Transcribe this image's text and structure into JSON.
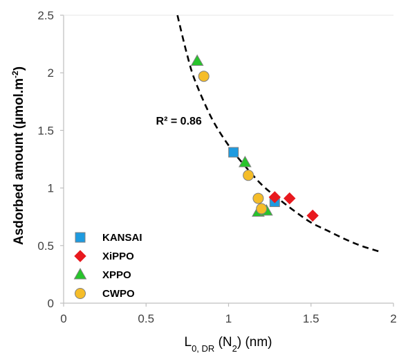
{
  "chart_data": {
    "type": "scatter",
    "xlabel": {
      "main": "L",
      "sub": "0, DR",
      "middle": " (N",
      "sub2": "2",
      "tail": ") (nm)"
    },
    "ylabel": {
      "main": "Asdorbed amount (µmol.m",
      "sup": "-2",
      "tail": ")"
    },
    "xlim": [
      0,
      2
    ],
    "ylim": [
      0,
      2.5
    ],
    "x_ticks": [
      0,
      0.5,
      1,
      1.5,
      2
    ],
    "x_tick_labels": [
      "0",
      "0.5",
      "1",
      "1.5",
      "2"
    ],
    "y_ticks": [
      0,
      0.5,
      1,
      1.5,
      2,
      2.5
    ],
    "y_tick_labels": [
      "0",
      "0.5",
      "1",
      "1.5",
      "2",
      "2.5"
    ],
    "grid": false,
    "legend_position": "bottom-left",
    "series": [
      {
        "name": "KANSAI",
        "marker": "square",
        "color": "#1e9be0",
        "points": [
          [
            1.03,
            1.31
          ],
          [
            1.28,
            0.88
          ]
        ]
      },
      {
        "name": "XiPPO",
        "marker": "diamond",
        "color": "#e8191e",
        "points": [
          [
            1.28,
            0.92
          ],
          [
            1.37,
            0.91
          ],
          [
            1.51,
            0.76
          ]
        ]
      },
      {
        "name": "XPPO",
        "marker": "triangle",
        "color": "#27c42b",
        "points": [
          [
            0.81,
            2.1
          ],
          [
            1.1,
            1.22
          ],
          [
            1.18,
            0.79
          ],
          [
            1.23,
            0.8
          ]
        ]
      },
      {
        "name": "CWPO",
        "marker": "circle",
        "color": "#f5bd29",
        "points": [
          [
            0.85,
            1.97
          ],
          [
            1.12,
            1.11
          ],
          [
            1.18,
            0.91
          ],
          [
            1.2,
            0.82
          ]
        ]
      }
    ],
    "fit_curve": {
      "style": "dashed",
      "color": "#000000",
      "x_range": [
        0.69,
        1.91
      ],
      "points": [
        [
          0.69,
          2.5
        ],
        [
          0.75,
          2.15
        ],
        [
          0.8,
          1.92
        ],
        [
          0.9,
          1.6
        ],
        [
          1.0,
          1.37
        ],
        [
          1.1,
          1.19
        ],
        [
          1.2,
          1.03
        ],
        [
          1.3,
          0.91
        ],
        [
          1.4,
          0.8
        ],
        [
          1.5,
          0.7
        ],
        [
          1.6,
          0.63
        ],
        [
          1.7,
          0.56
        ],
        [
          1.8,
          0.5
        ],
        [
          1.91,
          0.45
        ]
      ]
    },
    "annotations": [
      {
        "text": "R² = 0.86",
        "x": 0.56,
        "y": 1.55
      }
    ]
  }
}
